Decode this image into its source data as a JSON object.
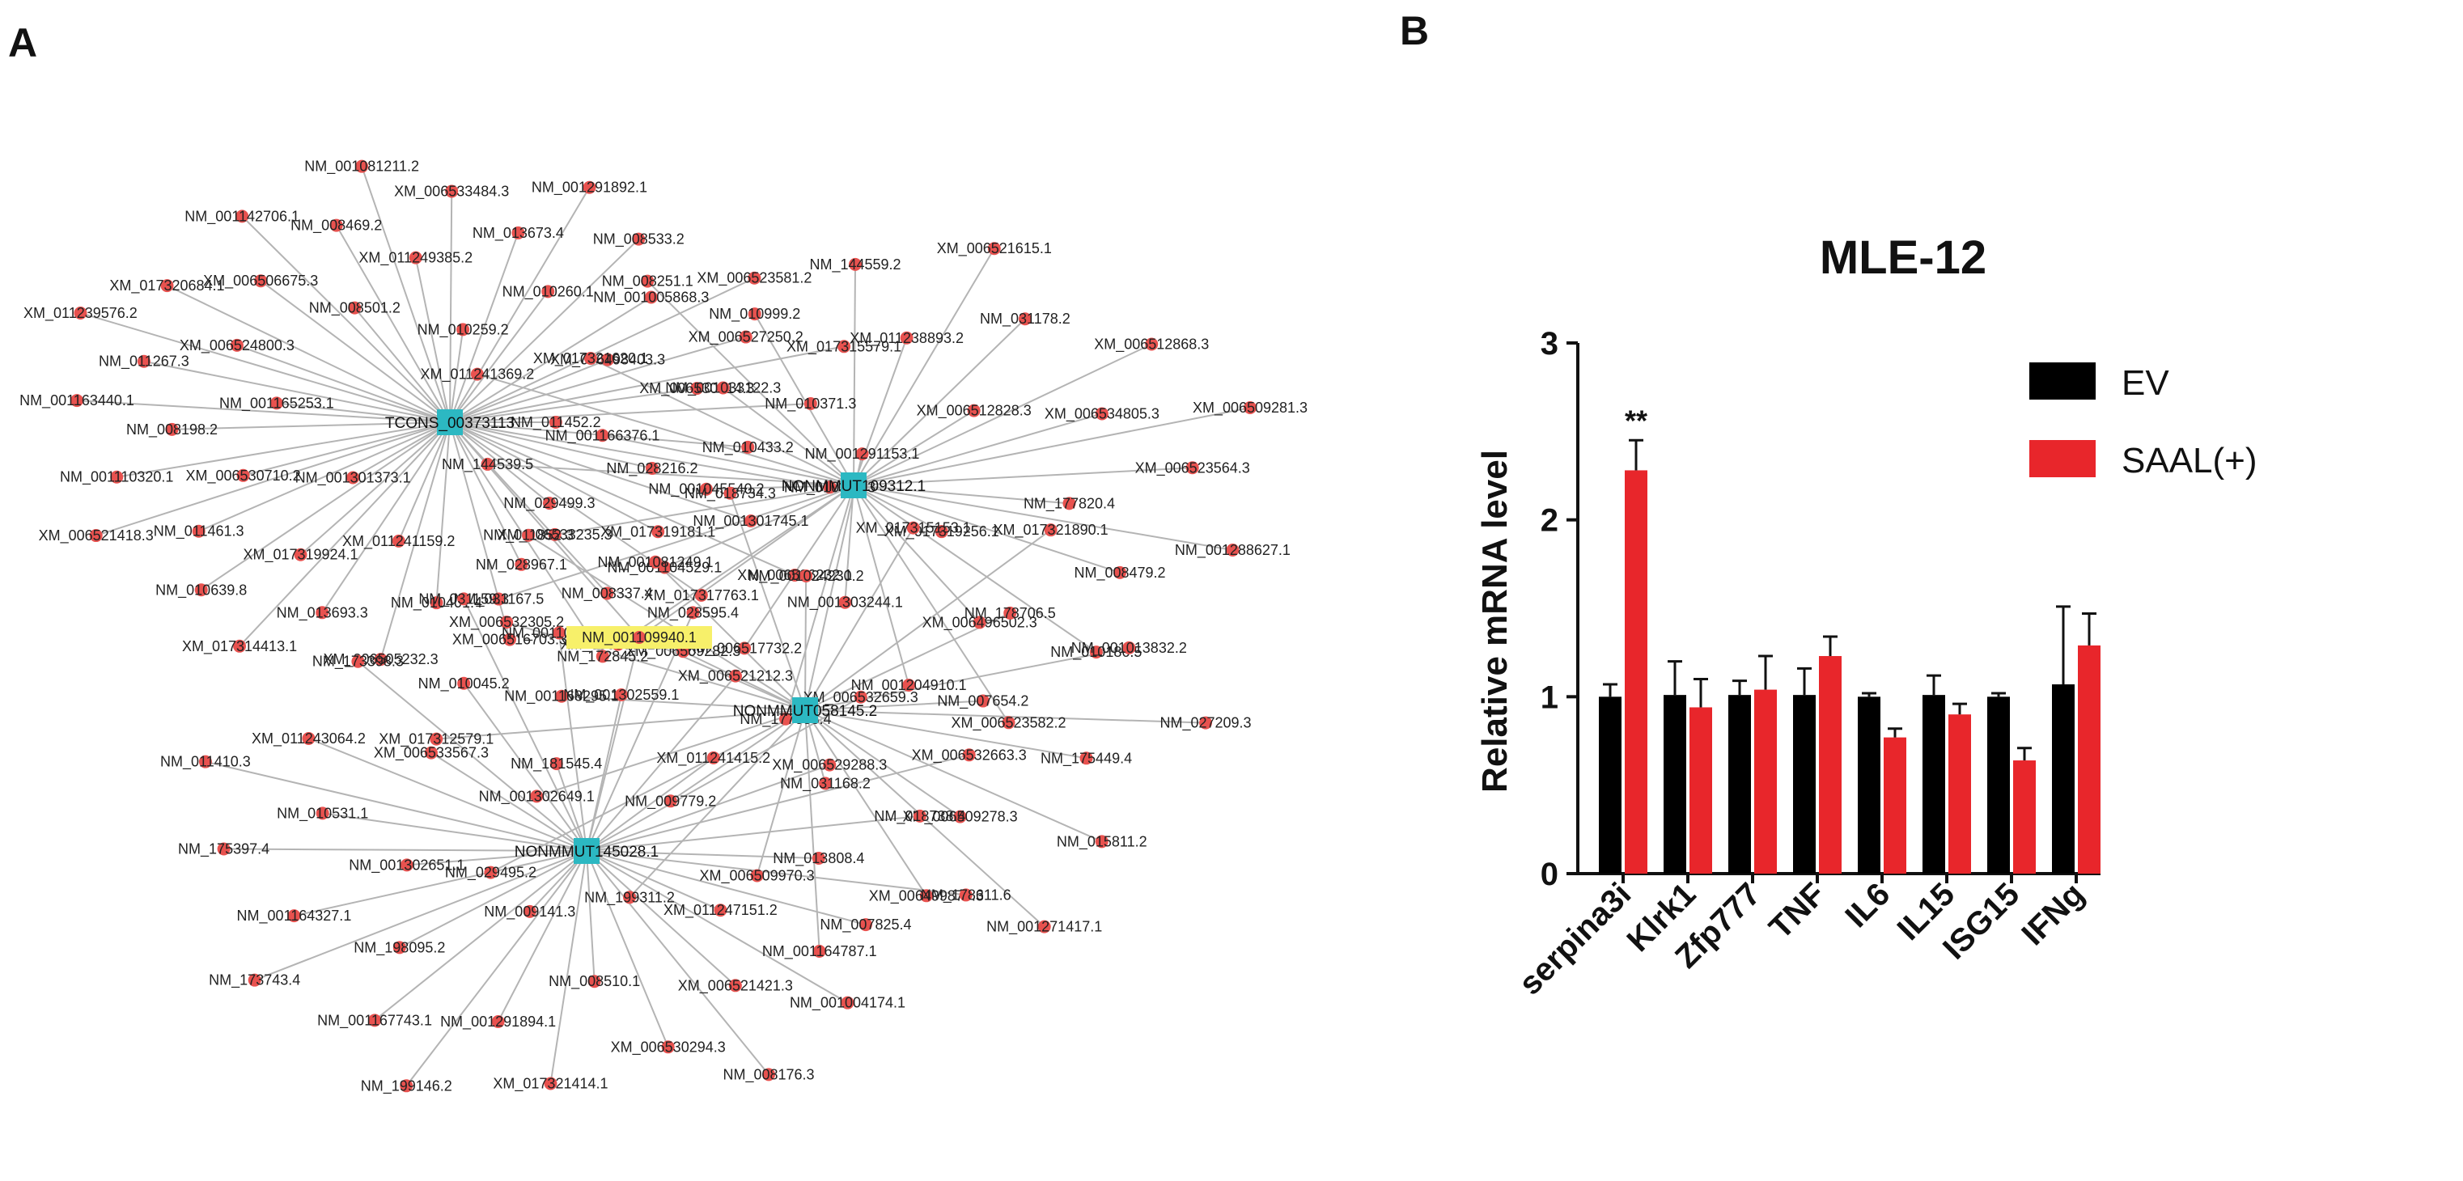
{
  "panel_a": {
    "label": "A",
    "highlight_node": "NM_001109940.1",
    "hubs": [
      {
        "id": "TCONS_00373113",
        "leaves": [
          "NM_011452.2",
          "NM_001301373.1",
          "NM_010259.2",
          "NM_029499.3",
          "NM_001165253.1",
          "XM_006498403.3",
          "XM_011241159.2",
          "NM_008501.2",
          "NM_028216.2",
          "XM_006530710.2",
          "NM_010260.1",
          "NM_028967.1",
          "XM_006524800.3",
          "XM_006530314.3",
          "XM_017319924.1",
          "XM_011249385.2",
          "XM_017319181.1",
          "NM_008198.2",
          "NM_001005868.3",
          "NM_010401.4",
          "XM_006506675.3",
          "NM_010433.2",
          "NM_011461.3",
          "NM_013673.4",
          "NM_008337.4",
          "NM_011267.3",
          "XM_006527250.2",
          "NM_013693.3",
          "NM_008469.2",
          "NM_001301745.1",
          "NM_001110320.1",
          "NM_008533.2",
          "XM_006516703.3",
          "XM_017320684.1",
          "NM_010371.3",
          "NM_010639.8",
          "XM_006533484.3",
          "XM_017317763.1",
          "NM_001163440.1",
          "XM_006523581.2",
          "XM_006505232.3",
          "NM_001142706.1",
          "NM_010398.3",
          "XM_006521418.3",
          "NM_001291892.1",
          "NM_172845.2",
          "XM_011239576.2",
          "XM_017315579.1",
          "XM_017314413.1",
          "NM_001081211.2",
          "XM_006536232.1"
        ]
      },
      {
        "id": "NONMMUT109312.1",
        "leaves": [
          "XM_017319256.1",
          "NM_001045540.2",
          "XM_006512828.3",
          "NM_001303244.1",
          "NM_001033122.3",
          "NM_177820.4",
          "NM_001104529.1",
          "XM_011238893.2",
          "XM_006496502.3",
          "NM_001166376.1",
          "XM_006534805.3",
          "XM_006517732.2",
          "NM_010999.2",
          "NM_008479.2",
          "XM_006533235.3",
          "NM_031178.2",
          "NM_001204910.1",
          "XM_017321620.1",
          "XM_006523564.3",
          "XM_006530325.3",
          "NM_144559.2",
          "NM_010186.5",
          "NM_144539.5",
          "XM_006512868.3",
          "NM_177083.4",
          "NM_008251.1",
          "NM_001288627.1",
          "NM_031167.5",
          "XM_006521615.1",
          "XM_006523582.2",
          "XM_011241369.2",
          "XM_006509281.3"
        ]
      },
      {
        "id": "NONMMUT058145.2",
        "leaves": [
          "NM_031168.2",
          "XM_006509282.3",
          "NM_007654.2",
          "NM_009779.2",
          "NM_001024230.2",
          "XM_006509278.3",
          "NM_001168295.1",
          "NM_178706.5",
          "XM_006509970.3",
          "NM_001081249.1",
          "NM_175449.4",
          "NM_001302649.1",
          "XM_017315153.1",
          "XM_006499873.3",
          "XM_006532305.2",
          "NM_001013832.2",
          "NM_199311.2",
          "NM_018734.3",
          "NM_015811.2",
          "XM_017312579.1",
          "XM_017321890.1",
          "NM_001164787.1",
          "NM_011852.3",
          "NM_027209.3",
          "NM_029495.2",
          "NM_001291153.1",
          "NM_001271417.1"
        ]
      },
      {
        "id": "NONMMUT145028.1",
        "leaves": [
          "NM_009141.3",
          "NM_181545.4",
          "XM_011247151.2",
          "NM_001302651.1",
          "XM_011241415.2",
          "NM_008510.1",
          "XM_006533567.3",
          "NM_013808.4",
          "NM_198095.2",
          "NM_001302559.1",
          "XM_006521421.3",
          "NM_010531.1",
          "XM_006529288.3",
          "NM_001291894.1",
          "NM_010045.2",
          "NM_007825.4",
          "NM_001164327.1",
          "XM_006521212.3",
          "XM_006530294.3",
          "XM_011243064.2",
          "NM_018738.4",
          "NM_001167743.1",
          "NM_001101475.2",
          "NM_001004174.1",
          "NM_175397.4",
          "XM_006532659.3",
          "XM_017321414.1",
          "NM_173398.3",
          "NM_178611.6",
          "NM_173743.4",
          "NM_028595.4",
          "NM_008176.3",
          "NM_011410.3",
          "XM_006532663.3",
          "NM_199146.2",
          "NM_031159.3"
        ]
      }
    ]
  },
  "panel_b": {
    "label": "B",
    "chart_data": {
      "type": "bar",
      "title": "MLE-12",
      "xlabel": "",
      "ylabel": "Relative mRNA level",
      "ylim": [
        0,
        3
      ],
      "yticks": [
        "0",
        "1",
        "2",
        "3"
      ],
      "categories": [
        "serpina3i",
        "Klrk1",
        "Zfp777",
        "TNF",
        "IL6",
        "IL15",
        "ISG15",
        "IFNg"
      ],
      "series": [
        {
          "name": "EV",
          "color": "#000000",
          "values": [
            1.0,
            1.01,
            1.01,
            1.01,
            1.0,
            1.01,
            1.0,
            1.07
          ],
          "errors": [
            0.07,
            0.19,
            0.08,
            0.15,
            0.02,
            0.11,
            0.02,
            0.44
          ]
        },
        {
          "name": "SAAL(+)",
          "color": "#e8262b",
          "values": [
            2.28,
            0.94,
            1.04,
            1.23,
            0.77,
            0.9,
            0.64,
            1.29
          ],
          "errors": [
            0.17,
            0.16,
            0.19,
            0.11,
            0.05,
            0.06,
            0.07,
            0.18
          ]
        }
      ],
      "annotations": [
        {
          "category": "serpina3i",
          "series": "SAAL(+)",
          "text": "**"
        }
      ],
      "legend_position": "top-right",
      "grid": false
    }
  }
}
